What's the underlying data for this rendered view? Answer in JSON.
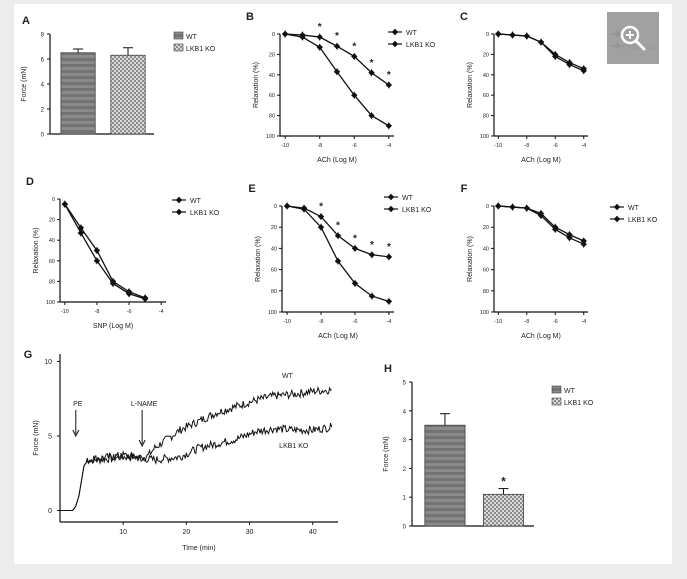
{
  "zoom": {
    "icon": "zoom-in-icon",
    "bg": "#9c9c9c"
  },
  "colors": {
    "line": "#111111",
    "bar_fill": "#7d7d7d",
    "bar_fill_ko": "#c4c4c4",
    "bg": "#ececec"
  },
  "panels": {
    "A": {
      "letter": "A",
      "ylabel": "Force (mN)",
      "yticks": [
        "0",
        "2",
        "4",
        "6",
        "8"
      ],
      "legend": [
        "WT",
        "LKB1 KO"
      ]
    },
    "B": {
      "letter": "B",
      "ylabel": "Relaxation (%)",
      "xlabel": "ACh (Log M)",
      "xticks": [
        "-10",
        "-8",
        "-6",
        "-4"
      ],
      "yticks": [
        "0",
        "20",
        "40",
        "60",
        "80",
        "100"
      ],
      "legend": [
        "WT",
        "LKB1 KO"
      ],
      "star": "*"
    },
    "C": {
      "letter": "C",
      "ylabel": "Relaxation (%)",
      "xlabel": "ACh (Log M)",
      "xticks": [
        "-10",
        "-8",
        "-6",
        "-4"
      ],
      "yticks": [
        "0",
        "20",
        "40",
        "60",
        "80",
        "100"
      ],
      "legend": [
        "WT",
        "LKB1 KO"
      ]
    },
    "D": {
      "letter": "D",
      "ylabel": "Relaxation (%)",
      "xlabel": "SNP (Log M)",
      "xticks": [
        "-10",
        "-8",
        "-6",
        "-4"
      ],
      "yticks": [
        "0",
        "20",
        "40",
        "60",
        "80",
        "100"
      ],
      "legend": [
        "WT",
        "LKB1 KO"
      ]
    },
    "E": {
      "letter": "E",
      "ylabel": "Relaxation (%)",
      "xlabel": "ACh (Log M)",
      "xticks": [
        "-10",
        "-8",
        "-6",
        "-4"
      ],
      "yticks": [
        "0",
        "20",
        "40",
        "60",
        "80",
        "100"
      ],
      "legend": [
        "WT",
        "LKB1 KO"
      ],
      "star": "*"
    },
    "F": {
      "letter": "F",
      "ylabel": "Relaxation (%)",
      "xlabel": "ACh (Log M)",
      "xticks": [
        "-10",
        "-8",
        "-6",
        "-4"
      ],
      "yticks": [
        "0",
        "20",
        "40",
        "60",
        "80",
        "100"
      ],
      "legend": [
        "WT",
        "LKB1 KO"
      ]
    },
    "G": {
      "letter": "G",
      "ylabel": "Force (mN)",
      "xlabel": "Time (min)",
      "xticks": [
        "10",
        "20",
        "30",
        "40"
      ],
      "yticks": [
        "0",
        "5",
        "10"
      ],
      "pe_label": "PE",
      "lname_label": "L-NAME",
      "wt_label": "WT",
      "ko_label": "LKB1 KO"
    },
    "H": {
      "letter": "H",
      "ylabel": "Force (mN)",
      "yticks": [
        "0",
        "1",
        "2",
        "3",
        "4",
        "5"
      ],
      "legend": [
        "WT",
        "LKB1 KO"
      ],
      "star": "*"
    }
  },
  "chart_data": [
    {
      "panel": "A",
      "type": "bar",
      "categories": [
        "WT",
        "LKB1 KO"
      ],
      "values": [
        6.5,
        6.3
      ],
      "errors": [
        0.3,
        0.6
      ],
      "ylim": [
        0,
        8
      ],
      "ylabel": "Force (mN)",
      "legend": [
        "WT",
        "LKB1 KO"
      ]
    },
    {
      "panel": "B",
      "type": "line",
      "x": [
        -10,
        -9,
        -8,
        -7,
        -6,
        -5,
        -4
      ],
      "xlim": [
        -10.3,
        -3.7
      ],
      "ylim": [
        0,
        100
      ],
      "y_inverted": true,
      "series": [
        {
          "name": "WT",
          "values": [
            0,
            3,
            13,
            37,
            60,
            80,
            90
          ]
        },
        {
          "name": "LKB1 KO",
          "values": [
            0,
            1,
            3,
            12,
            22,
            38,
            50
          ]
        }
      ],
      "star_x": [
        -8,
        -7,
        -6,
        -5,
        -4
      ],
      "xlabel": "ACh (Log M)",
      "ylabel": "Relaxation (%)"
    },
    {
      "panel": "C",
      "type": "line",
      "x": [
        -10,
        -9,
        -8,
        -7,
        -6,
        -5,
        -4
      ],
      "xlim": [
        -10.3,
        -3.7
      ],
      "ylim": [
        0,
        100
      ],
      "y_inverted": true,
      "series": [
        {
          "name": "WT",
          "values": [
            0,
            1,
            2,
            8,
            22,
            30,
            36
          ]
        },
        {
          "name": "LKB1 KO",
          "values": [
            0,
            1,
            2,
            8,
            20,
            28,
            34
          ]
        }
      ],
      "xlabel": "ACh (Log M)",
      "ylabel": "Relaxation (%)"
    },
    {
      "panel": "D",
      "type": "line",
      "x": [
        -10,
        -9,
        -8,
        -7,
        -6,
        -5
      ],
      "xlim": [
        -10.3,
        -3.7
      ],
      "ylim": [
        0,
        100
      ],
      "y_inverted": true,
      "series": [
        {
          "name": "WT",
          "values": [
            5,
            33,
            60,
            82,
            92,
            97
          ]
        },
        {
          "name": "LKB1 KO",
          "values": [
            5,
            28,
            50,
            80,
            90,
            96
          ]
        }
      ],
      "xlabel": "SNP (Log M)",
      "ylabel": "Relaxation (%)"
    },
    {
      "panel": "E",
      "type": "line",
      "x": [
        -10,
        -9,
        -8,
        -7,
        -6,
        -5,
        -4
      ],
      "xlim": [
        -10.3,
        -3.7
      ],
      "ylim": [
        0,
        100
      ],
      "y_inverted": true,
      "series": [
        {
          "name": "WT",
          "values": [
            0,
            3,
            20,
            52,
            73,
            85,
            90
          ]
        },
        {
          "name": "LKB1 KO",
          "values": [
            0,
            2,
            10,
            28,
            40,
            46,
            48
          ]
        }
      ],
      "star_x": [
        -8,
        -7,
        -6,
        -5,
        -4
      ],
      "xlabel": "ACh (Log M)",
      "ylabel": "Relaxation (%)"
    },
    {
      "panel": "F",
      "type": "line",
      "x": [
        -10,
        -9,
        -8,
        -7,
        -6,
        -5,
        -4
      ],
      "xlim": [
        -10.3,
        -3.7
      ],
      "ylim": [
        0,
        100
      ],
      "y_inverted": true,
      "series": [
        {
          "name": "WT",
          "values": [
            0,
            1,
            2,
            9,
            22,
            30,
            36
          ]
        },
        {
          "name": "LKB1 KO",
          "values": [
            0,
            1,
            2,
            7,
            20,
            27,
            33
          ]
        }
      ],
      "xlabel": "ACh (Log M)",
      "ylabel": "Relaxation (%)"
    },
    {
      "panel": "G",
      "type": "line",
      "xlim": [
        0,
        44
      ],
      "ylim": [
        -0.5,
        10.5
      ],
      "series": [
        {
          "name": "WT",
          "points": [
            [
              0,
              0
            ],
            [
              2,
              0
            ],
            [
              2.5,
              0.3
            ],
            [
              3,
              1
            ],
            [
              3.4,
              2
            ],
            [
              3.8,
              3
            ],
            [
              4.5,
              3.4
            ],
            [
              6,
              3.4
            ],
            [
              8,
              3.5
            ],
            [
              10,
              3.6
            ],
            [
              12,
              3.6
            ],
            [
              13,
              3.5
            ],
            [
              14,
              3.7
            ],
            [
              15,
              4.2
            ],
            [
              17,
              4.8
            ],
            [
              19,
              5.4
            ],
            [
              22,
              6
            ],
            [
              25,
              6.6
            ],
            [
              28,
              7
            ],
            [
              31,
              7.4
            ],
            [
              34,
              7.7
            ],
            [
              37,
              7.8
            ],
            [
              40,
              8
            ],
            [
              43,
              8.1
            ]
          ]
        },
        {
          "name": "LKB1 KO",
          "points": [
            [
              0,
              0
            ],
            [
              2,
              0
            ],
            [
              2.5,
              0.3
            ],
            [
              3,
              1
            ],
            [
              3.4,
              2
            ],
            [
              3.8,
              3
            ],
            [
              4.5,
              3.4
            ],
            [
              6,
              3.5
            ],
            [
              8,
              3.6
            ],
            [
              10,
              3.7
            ],
            [
              12,
              3.6
            ],
            [
              13,
              3.5
            ],
            [
              15,
              3.4
            ],
            [
              17,
              3.5
            ],
            [
              19,
              3.6
            ],
            [
              22,
              4.2
            ],
            [
              25,
              4.5
            ],
            [
              28,
              4.8
            ],
            [
              31,
              5.3
            ],
            [
              34,
              5.5
            ],
            [
              37,
              5.4
            ],
            [
              40,
              5.4
            ],
            [
              43,
              5.6
            ]
          ]
        }
      ],
      "annotations": [
        "PE",
        "L-NAME",
        "WT",
        "LKB1 KO"
      ],
      "xlabel": "Time (min)",
      "ylabel": "Force (mN)"
    },
    {
      "panel": "H",
      "type": "bar",
      "categories": [
        "WT",
        "LKB1 KO"
      ],
      "values": [
        3.5,
        1.1
      ],
      "errors": [
        0.4,
        0.2
      ],
      "ylim": [
        0,
        5
      ],
      "ylabel": "Force (mN)",
      "legend": [
        "WT",
        "LKB1 KO"
      ]
    }
  ]
}
